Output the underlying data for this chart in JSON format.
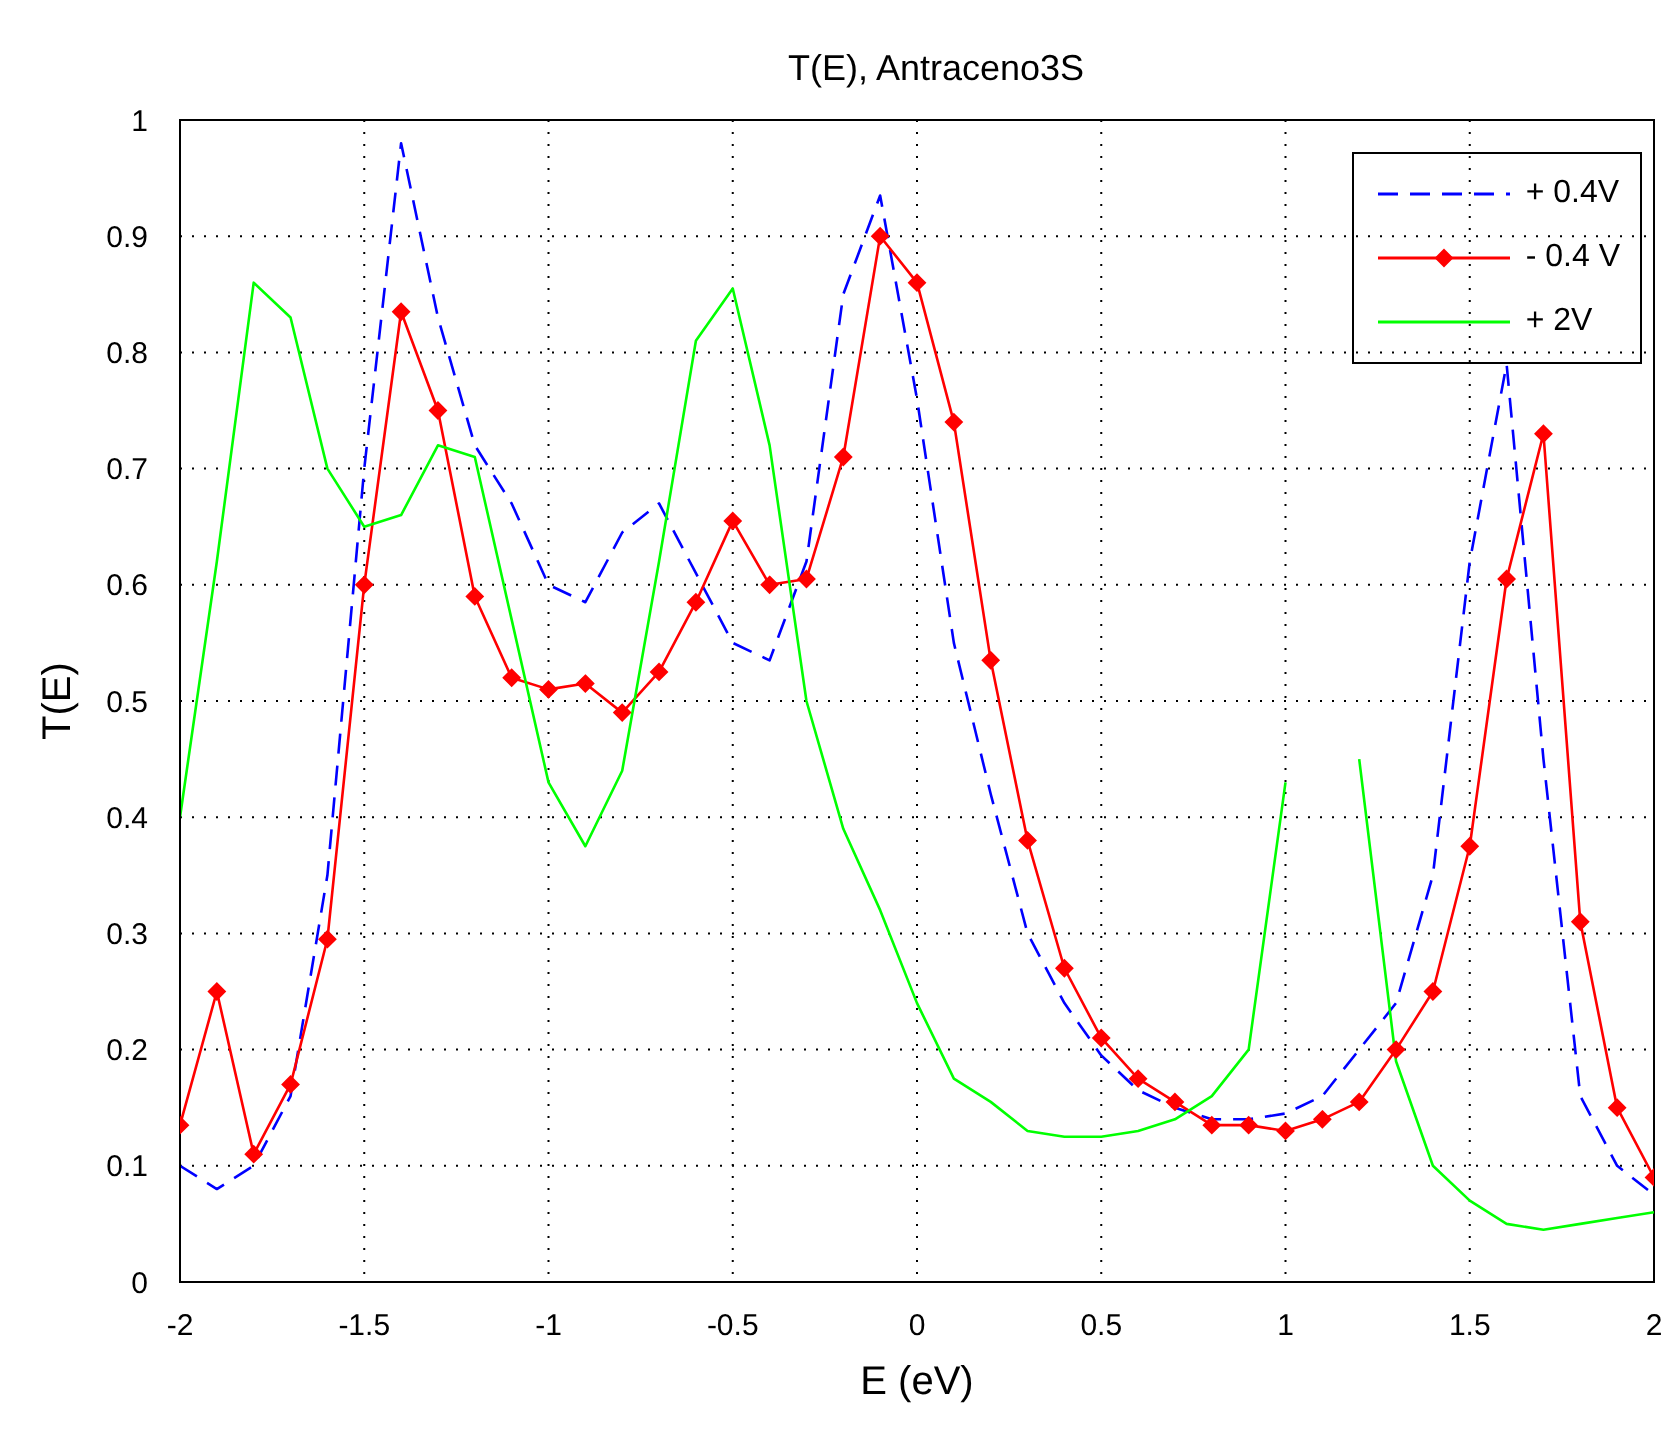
{
  "chart_data": {
    "type": "line",
    "title": "T(E), Antraceno3S",
    "xlabel": "E (eV)",
    "ylabel": "T(E)",
    "x": [
      -2,
      -1.9,
      -1.8,
      -1.7,
      -1.6,
      -1.5,
      -1.4,
      -1.3,
      -1.2,
      -1.1,
      -1,
      -0.9,
      -0.8,
      -0.7,
      -0.6,
      -0.5,
      -0.4,
      -0.3,
      -0.2,
      -0.1,
      0,
      0.1,
      0.2,
      0.3,
      0.4,
      0.5,
      0.6,
      0.7,
      0.8,
      0.9,
      1,
      1.1,
      1.2,
      1.3,
      1.4,
      1.5,
      1.6,
      1.7,
      1.8,
      1.9,
      2
    ],
    "series": [
      {
        "name": "+ 0.4V",
        "color": "#0000ff",
        "line_style": "dashed",
        "marker": "none",
        "values": [
          0.1,
          0.08,
          0.1,
          0.16,
          0.35,
          0.7,
          0.98,
          0.83,
          0.72,
          0.67,
          0.6,
          0.585,
          0.645,
          0.67,
          0.61,
          0.55,
          0.535,
          0.62,
          0.85,
          0.935,
          0.76,
          0.55,
          0.42,
          0.3,
          0.24,
          0.195,
          0.165,
          0.15,
          0.14,
          0.14,
          0.145,
          0.16,
          0.2,
          0.24,
          0.35,
          0.62,
          0.79,
          0.45,
          0.16,
          0.1,
          0.075
        ]
      },
      {
        "name": "- 0.4 V",
        "color": "#ff0000",
        "line_style": "solid",
        "marker": "diamond",
        "values": [
          0.135,
          0.25,
          0.11,
          0.17,
          0.295,
          0.6,
          0.835,
          0.75,
          0.59,
          0.52,
          0.51,
          0.515,
          0.49,
          0.525,
          0.585,
          0.655,
          0.6,
          0.605,
          0.71,
          0.9,
          0.86,
          0.74,
          0.535,
          0.38,
          0.27,
          0.21,
          0.175,
          0.155,
          0.135,
          0.135,
          0.13,
          0.14,
          0.155,
          0.2,
          0.25,
          0.375,
          0.605,
          0.73,
          0.31,
          0.15,
          0.09
        ]
      },
      {
        "name": "+ 2V",
        "color": "#00ff00",
        "line_style": "solid",
        "marker": "none",
        "values": [
          0.4,
          0.62,
          0.86,
          0.83,
          0.7,
          0.65,
          0.66,
          0.72,
          0.71,
          0.57,
          0.43,
          0.375,
          0.44,
          0.62,
          0.81,
          0.855,
          0.72,
          0.5,
          0.39,
          0.32,
          0.24,
          0.175,
          0.155,
          0.13,
          0.125,
          0.125,
          0.13,
          0.14,
          0.16,
          0.2,
          0.43,
          null,
          0.45,
          0.19,
          0.1,
          0.07,
          0.05,
          0.045,
          0.05,
          0.055,
          0.06
        ]
      }
    ],
    "xlim": [
      -2,
      2
    ],
    "xticks": [
      -2,
      -1.5,
      -1,
      -0.5,
      0,
      0.5,
      1,
      1.5,
      2
    ],
    "ylim": [
      0,
      1
    ],
    "yticks": [
      0,
      0.1,
      0.2,
      0.3,
      0.4,
      0.5,
      0.6,
      0.7,
      0.8,
      0.9,
      1
    ],
    "grid": true,
    "legend": "top right"
  }
}
